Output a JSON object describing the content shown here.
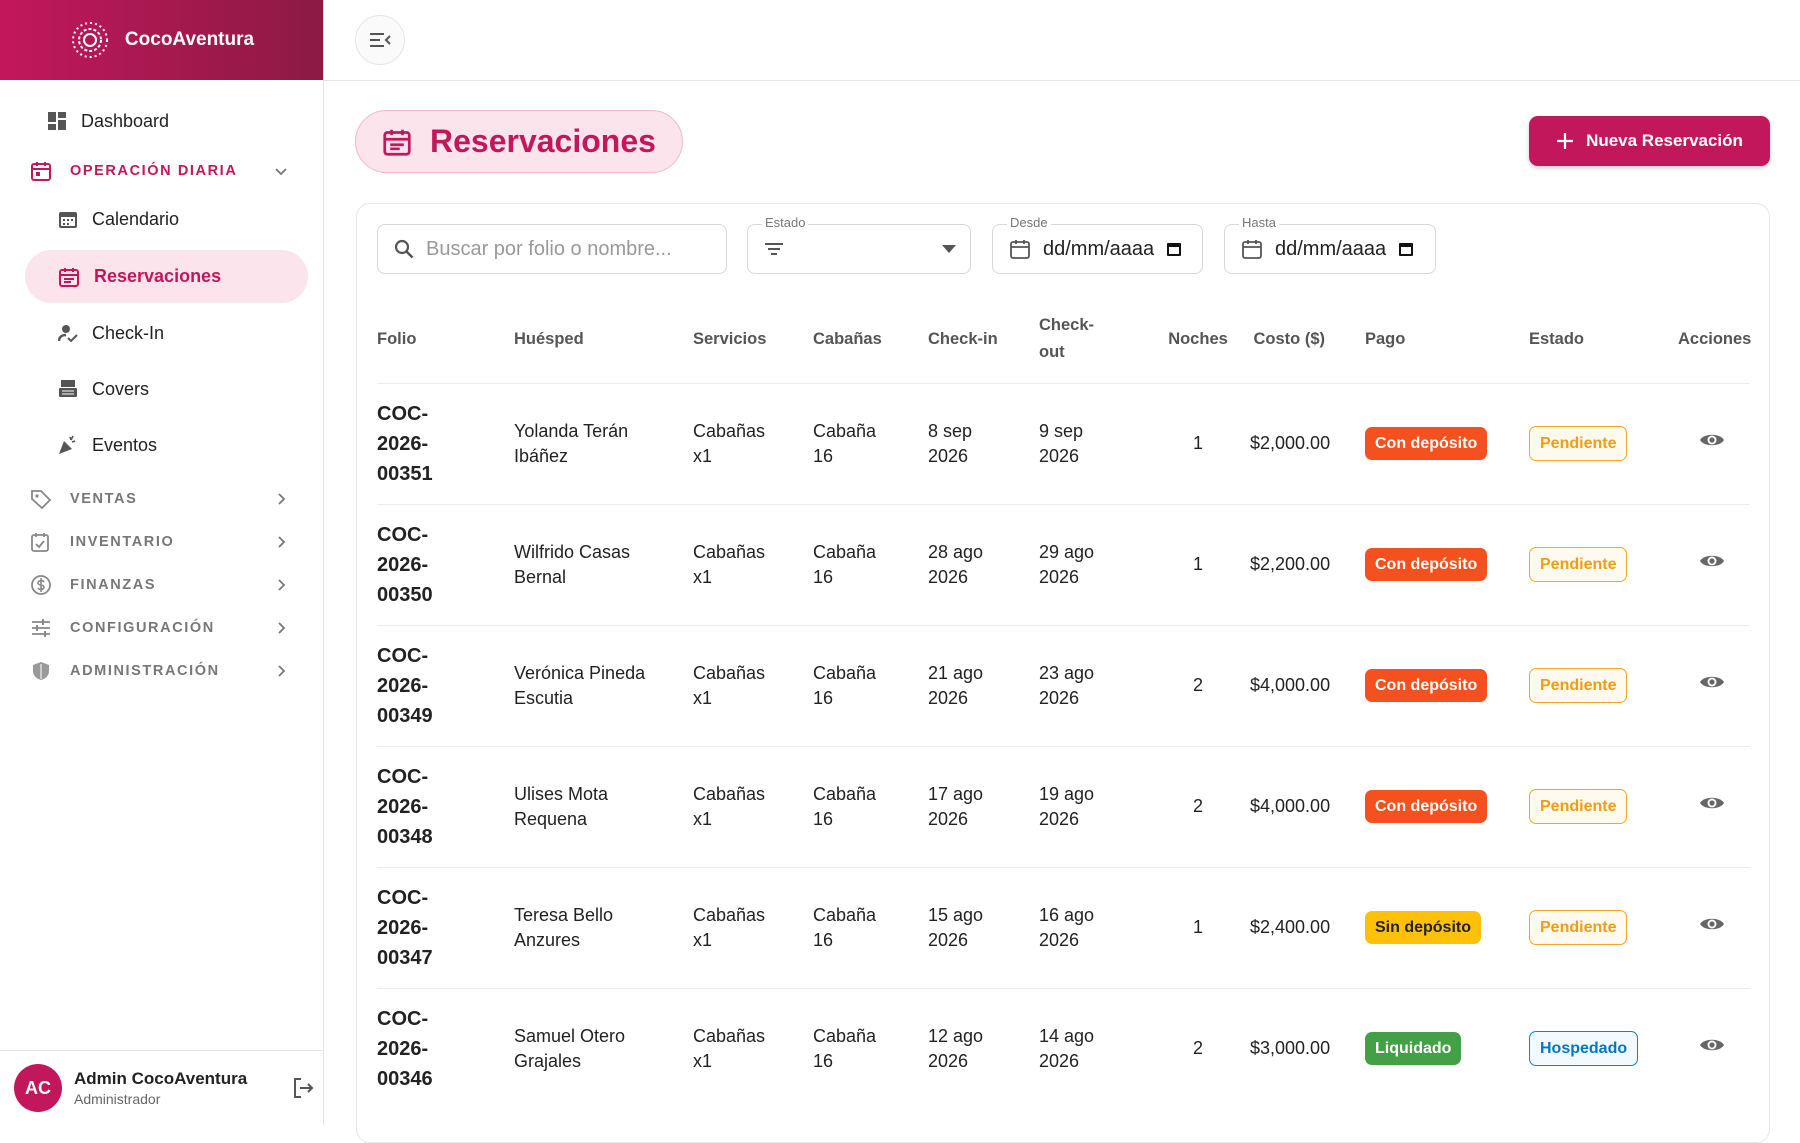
{
  "sidebar": {
    "brand": "CocoAventura",
    "nav": {
      "dashboard": "Dashboard",
      "operacion": "OPERACIÓN DIARIA",
      "calendario": "Calendario",
      "reservaciones": "Reservaciones",
      "checkin": "Check-In",
      "covers": "Covers",
      "eventos": "Eventos",
      "ventas": "VENTAS",
      "inventario": "INVENTARIO",
      "finanzas": "FINANZAS",
      "configuracion": "CONFIGURACIÓN",
      "administracion": "ADMINISTRACIÓN"
    },
    "user": {
      "initials": "AC",
      "name": "Admin CocoAventura",
      "role": "Administrador"
    }
  },
  "page": {
    "title": "Reservaciones",
    "new_button": "Nueva Reservación"
  },
  "filters": {
    "search_placeholder": "Buscar por folio o nombre...",
    "estado_label": "Estado",
    "desde_label": "Desde",
    "hasta_label": "Hasta",
    "date_placeholder": "dd/mm/aaaa"
  },
  "table": {
    "columns": [
      "Folio",
      "Huésped",
      "Servicios",
      "Cabañas",
      "Check-in",
      "Check-out",
      "Noches",
      "Costo ($)",
      "Pago",
      "Estado",
      "Acciones"
    ],
    "rows": [
      {
        "folio": "COC-2026-00351",
        "guest": "Yolanda Terán Ibáñez",
        "services": "Cabañas x1",
        "cabin": "Cabaña 16",
        "checkin": "8 sep 2026",
        "checkout": "9 sep 2026",
        "nights": 1,
        "cost": "$2,000.00",
        "payment": "Con depósito",
        "status": "Pendiente"
      },
      {
        "folio": "COC-2026-00350",
        "guest": "Wilfrido Casas Bernal",
        "services": "Cabañas x1",
        "cabin": "Cabaña 16",
        "checkin": "28 ago 2026",
        "checkout": "29 ago 2026",
        "nights": 1,
        "cost": "$2,200.00",
        "payment": "Con depósito",
        "status": "Pendiente"
      },
      {
        "folio": "COC-2026-00349",
        "guest": "Verónica Pineda Escutia",
        "services": "Cabañas x1",
        "cabin": "Cabaña 16",
        "checkin": "21 ago 2026",
        "checkout": "23 ago 2026",
        "nights": 2,
        "cost": "$4,000.00",
        "payment": "Con depósito",
        "status": "Pendiente"
      },
      {
        "folio": "COC-2026-00348",
        "guest": "Ulises Mota Requena",
        "services": "Cabañas x1",
        "cabin": "Cabaña 16",
        "checkin": "17 ago 2026",
        "checkout": "19 ago 2026",
        "nights": 2,
        "cost": "$4,000.00",
        "payment": "Con depósito",
        "status": "Pendiente"
      },
      {
        "folio": "COC-2026-00347",
        "guest": "Teresa Bello Anzures",
        "services": "Cabañas x1",
        "cabin": "Cabaña 16",
        "checkin": "15 ago 2026",
        "checkout": "16 ago 2026",
        "nights": 1,
        "cost": "$2,400.00",
        "payment": "Sin depósito",
        "status": "Pendiente"
      },
      {
        "folio": "COC-2026-00346",
        "guest": "Samuel Otero Grajales",
        "services": "Cabañas x1",
        "cabin": "Cabaña 16",
        "checkin": "12 ago 2026",
        "checkout": "14 ago 2026",
        "nights": 2,
        "cost": "$3,000.00",
        "payment": "Liquidado",
        "status": "Hospedado"
      }
    ]
  }
}
